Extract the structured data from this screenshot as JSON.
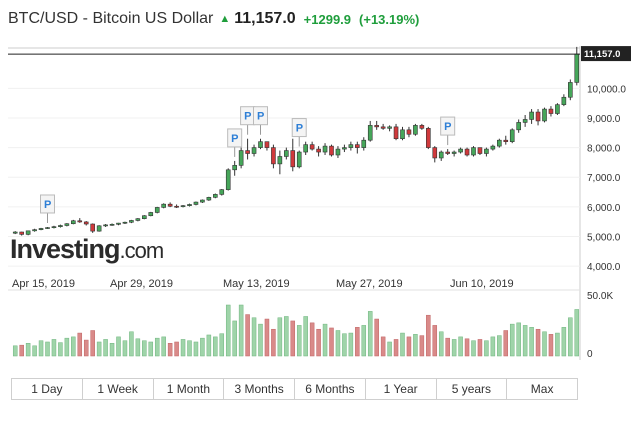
{
  "header": {
    "title": "BTC/USD - Bitcoin US Dollar",
    "price": "11,157.0",
    "change": "+1299.9",
    "change_pct": "(+13.19%)"
  },
  "watermark": "Investing.com",
  "colors": {
    "up": "#46a65a",
    "down": "#d0393c",
    "vol_up": "#9fd4a9",
    "vol_down": "#d98a89"
  },
  "ranges": [
    "1 Day",
    "1 Week",
    "1 Month",
    "3 Months",
    "6 Months",
    "1 Year",
    "5 years",
    "Max"
  ],
  "selected_range": "3 Months",
  "chart_data": {
    "type": "candlestick",
    "price_axis": {
      "ticks": [
        4000,
        5000,
        6000,
        7000,
        8000,
        9000,
        10000
      ],
      "labels": [
        "4,000.0",
        "5,000.0",
        "6,000.0",
        "7,000.0",
        "8,000.0",
        "9,000.0",
        "10,000.0"
      ],
      "range": [
        3800,
        11700
      ]
    },
    "last_price": {
      "value": 11157,
      "label": "11,157.0"
    },
    "date_labels": [
      "Apr 15, 2019",
      "Apr 29, 2019",
      "May 13, 2019",
      "May 27, 2019",
      "Jun 10, 2019"
    ],
    "volume_axis": {
      "labels": [
        "50.0K",
        "0"
      ]
    },
    "candles": [
      [
        5110,
        5180,
        5080,
        5150
      ],
      [
        5150,
        5160,
        5030,
        5070
      ],
      [
        5070,
        5200,
        5040,
        5190
      ],
      [
        5190,
        5260,
        5160,
        5230
      ],
      [
        5230,
        5290,
        5210,
        5270
      ],
      [
        5270,
        5320,
        5250,
        5300
      ],
      [
        5300,
        5360,
        5270,
        5330
      ],
      [
        5330,
        5400,
        5300,
        5370
      ],
      [
        5370,
        5450,
        5340,
        5430
      ],
      [
        5430,
        5560,
        5410,
        5530
      ],
      [
        5530,
        5620,
        5460,
        5490
      ],
      [
        5490,
        5520,
        5370,
        5420
      ],
      [
        5420,
        5440,
        5120,
        5180
      ],
      [
        5180,
        5380,
        5160,
        5360
      ],
      [
        5360,
        5420,
        5320,
        5390
      ],
      [
        5390,
        5440,
        5360,
        5410
      ],
      [
        5410,
        5460,
        5380,
        5450
      ],
      [
        5450,
        5500,
        5420,
        5480
      ],
      [
        5480,
        5560,
        5450,
        5540
      ],
      [
        5540,
        5620,
        5510,
        5600
      ],
      [
        5600,
        5720,
        5580,
        5700
      ],
      [
        5700,
        5830,
        5680,
        5810
      ],
      [
        5810,
        6000,
        5780,
        5980
      ],
      [
        5980,
        6120,
        5950,
        6090
      ],
      [
        6090,
        6150,
        5990,
        6020
      ],
      [
        6020,
        6080,
        5960,
        6010
      ],
      [
        6010,
        6060,
        5980,
        6040
      ],
      [
        6040,
        6110,
        6010,
        6080
      ],
      [
        6080,
        6180,
        6050,
        6160
      ],
      [
        6160,
        6250,
        6130,
        6230
      ],
      [
        6230,
        6340,
        6200,
        6320
      ],
      [
        6320,
        6450,
        6290,
        6420
      ],
      [
        6420,
        6600,
        6380,
        6580
      ],
      [
        6580,
        7300,
        6550,
        7250
      ],
      [
        7250,
        7550,
        7050,
        7400
      ],
      [
        7400,
        8000,
        7300,
        7900
      ],
      [
        7900,
        8300,
        7600,
        7800
      ],
      [
        7800,
        8100,
        7700,
        8000
      ],
      [
        8000,
        8300,
        7950,
        8200
      ],
      [
        8200,
        8200,
        7900,
        8000
      ],
      [
        8000,
        8100,
        7300,
        7450
      ],
      [
        7450,
        7900,
        7100,
        7700
      ],
      [
        7700,
        8000,
        7600,
        7900
      ],
      [
        7900,
        8300,
        7200,
        7350
      ],
      [
        7350,
        7900,
        7300,
        7850
      ],
      [
        7850,
        8200,
        7750,
        8100
      ],
      [
        8100,
        8200,
        7900,
        7950
      ],
      [
        7950,
        8050,
        7700,
        7850
      ],
      [
        7850,
        8150,
        7750,
        8050
      ],
      [
        8050,
        8100,
        7700,
        7750
      ],
      [
        7750,
        8050,
        7650,
        7950
      ],
      [
        7950,
        8100,
        7850,
        8000
      ],
      [
        8000,
        8200,
        7900,
        8100
      ],
      [
        8100,
        8200,
        7800,
        8000
      ],
      [
        8000,
        8350,
        7900,
        8250
      ],
      [
        8250,
        8900,
        8200,
        8750
      ],
      [
        8750,
        8900,
        8600,
        8700
      ],
      [
        8700,
        8800,
        8600,
        8650
      ],
      [
        8650,
        8750,
        8550,
        8700
      ],
      [
        8700,
        8800,
        8250,
        8300
      ],
      [
        8300,
        8700,
        8250,
        8600
      ],
      [
        8600,
        8700,
        8350,
        8450
      ],
      [
        8450,
        8800,
        8400,
        8750
      ],
      [
        8750,
        8800,
        8600,
        8650
      ],
      [
        8650,
        8700,
        7950,
        8000
      ],
      [
        8000,
        8050,
        7500,
        7650
      ],
      [
        7650,
        7900,
        7550,
        7850
      ],
      [
        7850,
        7950,
        7750,
        7800
      ],
      [
        7800,
        7900,
        7700,
        7850
      ],
      [
        7850,
        8000,
        7800,
        7950
      ],
      [
        7950,
        8000,
        7700,
        7750
      ],
      [
        7750,
        8050,
        7700,
        8000
      ],
      [
        8000,
        8000,
        7750,
        7800
      ],
      [
        7800,
        8000,
        7700,
        7950
      ],
      [
        7950,
        8100,
        7900,
        8050
      ],
      [
        8050,
        8300,
        8000,
        8250
      ],
      [
        8250,
        8400,
        8100,
        8200
      ],
      [
        8200,
        8650,
        8150,
        8600
      ],
      [
        8600,
        8950,
        8500,
        8850
      ],
      [
        8850,
        9100,
        8700,
        8950
      ],
      [
        8950,
        9300,
        8800,
        9200
      ],
      [
        9200,
        9300,
        8750,
        8900
      ],
      [
        8900,
        9350,
        8850,
        9300
      ],
      [
        9300,
        9400,
        9050,
        9150
      ],
      [
        9150,
        9500,
        9100,
        9450
      ],
      [
        9450,
        9800,
        9400,
        9700
      ],
      [
        9700,
        10300,
        9600,
        10200
      ],
      [
        10200,
        11400,
        10100,
        11157
      ]
    ],
    "volumes": [
      16,
      17,
      20,
      16,
      24,
      22,
      26,
      21,
      28,
      30,
      36,
      25,
      40,
      22,
      26,
      20,
      30,
      24,
      38,
      27,
      24,
      22,
      28,
      30,
      20,
      22,
      26,
      24,
      22,
      28,
      33,
      30,
      35,
      80,
      55,
      80,
      65,
      60,
      50,
      58,
      42,
      60,
      62,
      55,
      48,
      62,
      52,
      42,
      50,
      44,
      40,
      35,
      36,
      45,
      48,
      70,
      58,
      30,
      22,
      26,
      36,
      30,
      34,
      32,
      64,
      48,
      38,
      28,
      26,
      30,
      27,
      24,
      26,
      24,
      30,
      32,
      40,
      50,
      52,
      48,
      45,
      42,
      38,
      34,
      36,
      45,
      60,
      73
    ]
  }
}
